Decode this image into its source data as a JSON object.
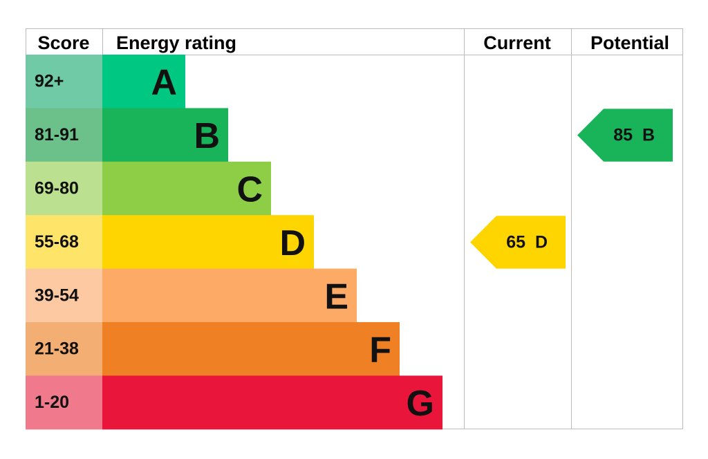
{
  "header": {
    "score": "Score",
    "rating": "Energy rating",
    "current": "Current",
    "potential": "Potential"
  },
  "bands": [
    {
      "score": "92+",
      "rating": "A",
      "color": "#00c781",
      "score_color": "#6fcaa5"
    },
    {
      "score": "81-91",
      "rating": "B",
      "color": "#19b459",
      "score_color": "#6cc18a"
    },
    {
      "score": "69-80",
      "rating": "C",
      "color": "#8dce46",
      "score_color": "#bbe08f"
    },
    {
      "score": "55-68",
      "rating": "D",
      "color": "#ffd500",
      "score_color": "#ffe46a"
    },
    {
      "score": "39-54",
      "rating": "E",
      "color": "#fcaa65",
      "score_color": "#fcc9a3"
    },
    {
      "score": "21-38",
      "rating": "F",
      "color": "#ef8023",
      "score_color": "#f3ae73"
    },
    {
      "score": "1-20",
      "rating": "G",
      "color": "#e9153b",
      "score_color": "#f07a8b"
    }
  ],
  "current": {
    "score": 65,
    "rating": "D"
  },
  "potential": {
    "score": 85,
    "rating": "B"
  }
}
